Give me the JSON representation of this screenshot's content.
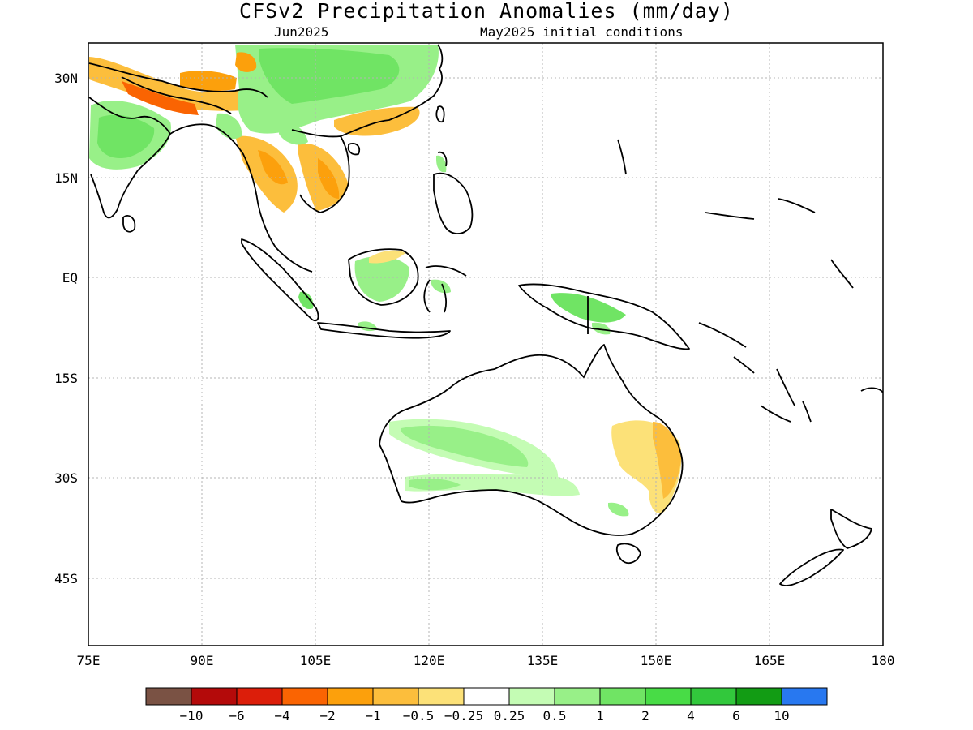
{
  "title": "CFSv2 Precipitation Anomalies (mm/day)",
  "subtitle_left": "Jun2025",
  "subtitle_right": "May2025 initial conditions",
  "map": {
    "lat_labels": [
      "30N",
      "15N",
      "EQ",
      "15S",
      "30S",
      "45S"
    ],
    "lon_labels": [
      "75E",
      "90E",
      "105E",
      "120E",
      "135E",
      "150E",
      "165E",
      "180"
    ],
    "grid": "dotted"
  },
  "colorbar": {
    "colors": [
      "#7a5244",
      "#b40a0a",
      "#dc1e0a",
      "#fa6402",
      "#fca00c",
      "#fcbe3c",
      "#fce178",
      "#ffffff",
      "#c4fcb4",
      "#98f088",
      "#70e464",
      "#48dc46",
      "#32c83c",
      "#129c14",
      "#2878f0"
    ],
    "labels": [
      "-10",
      "-6",
      "-4",
      "-2",
      "-1",
      "-0.5",
      "-0.25",
      "0.25",
      "0.5",
      "1",
      "2",
      "4",
      "6",
      "10"
    ]
  }
}
